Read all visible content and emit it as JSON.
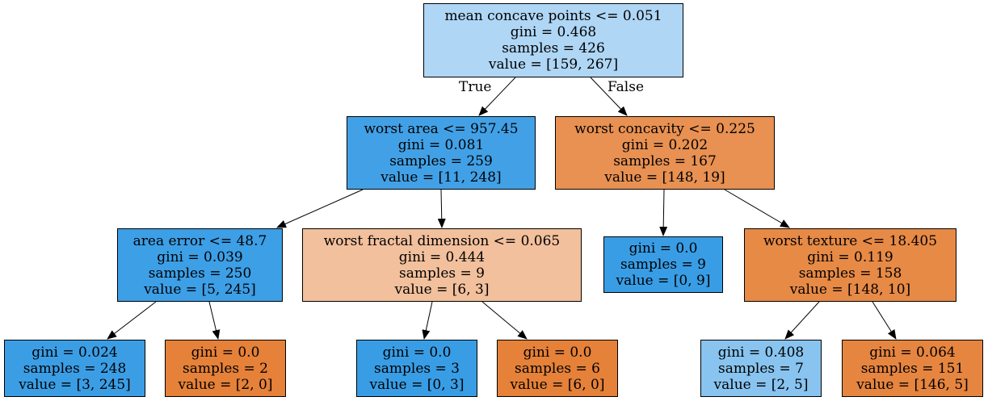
{
  "tree": {
    "nodes": [
      {
        "id": "n0",
        "lines": [
          "mean concave points <= 0.051",
          "gini = 0.468",
          "samples = 426",
          "value = [159, 267]"
        ],
        "fill": "#afd6f5"
      },
      {
        "id": "n1",
        "lines": [
          "worst area <= 957.45",
          "gini = 0.081",
          "samples = 259",
          "value = [11, 248]"
        ],
        "fill": "#42a1e6"
      },
      {
        "id": "n2",
        "lines": [
          "worst concavity <= 0.225",
          "gini = 0.202",
          "samples = 167",
          "value = [148, 19]"
        ],
        "fill": "#e89152"
      },
      {
        "id": "n3",
        "lines": [
          "area error <= 48.7",
          "gini = 0.039",
          "samples = 250",
          "value = [5, 245]"
        ],
        "fill": "#3d9fe6"
      },
      {
        "id": "n4",
        "lines": [
          "worst fractal dimension <= 0.065",
          "gini = 0.444",
          "samples = 9",
          "value = [6, 3]"
        ],
        "fill": "#f2c09c"
      },
      {
        "id": "n5",
        "lines": [
          "gini = 0.0",
          "samples = 9",
          "value = [0, 9]"
        ],
        "fill": "#399de5"
      },
      {
        "id": "n6",
        "lines": [
          "worst texture <= 18.405",
          "gini = 0.119",
          "samples = 158",
          "value = [148, 10]"
        ],
        "fill": "#e78a46"
      },
      {
        "id": "n7",
        "lines": [
          "gini = 0.024",
          "samples = 248",
          "value = [3, 245]"
        ],
        "fill": "#3b9ee5"
      },
      {
        "id": "n8",
        "lines": [
          "gini = 0.0",
          "samples = 2",
          "value = [2, 0]"
        ],
        "fill": "#e58139"
      },
      {
        "id": "n9",
        "lines": [
          "gini = 0.0",
          "samples = 3",
          "value = [0, 3]"
        ],
        "fill": "#399de5"
      },
      {
        "id": "n10",
        "lines": [
          "gini = 0.0",
          "samples = 6",
          "value = [6, 0]"
        ],
        "fill": "#e58139"
      },
      {
        "id": "n11",
        "lines": [
          "gini = 0.408",
          "samples = 7",
          "value = [2, 5]"
        ],
        "fill": "#88c4ef"
      },
      {
        "id": "n12",
        "lines": [
          "gini = 0.064",
          "samples = 151",
          "value = [146, 5]"
        ],
        "fill": "#e68540"
      }
    ],
    "edges": [
      {
        "from": "n0",
        "to": "n1",
        "label": "True"
      },
      {
        "from": "n0",
        "to": "n2",
        "label": "False"
      },
      {
        "from": "n1",
        "to": "n3"
      },
      {
        "from": "n1",
        "to": "n4"
      },
      {
        "from": "n2",
        "to": "n5"
      },
      {
        "from": "n2",
        "to": "n6"
      },
      {
        "from": "n3",
        "to": "n7"
      },
      {
        "from": "n3",
        "to": "n8"
      },
      {
        "from": "n4",
        "to": "n9"
      },
      {
        "from": "n4",
        "to": "n10"
      },
      {
        "from": "n6",
        "to": "n11"
      },
      {
        "from": "n6",
        "to": "n12"
      }
    ]
  }
}
